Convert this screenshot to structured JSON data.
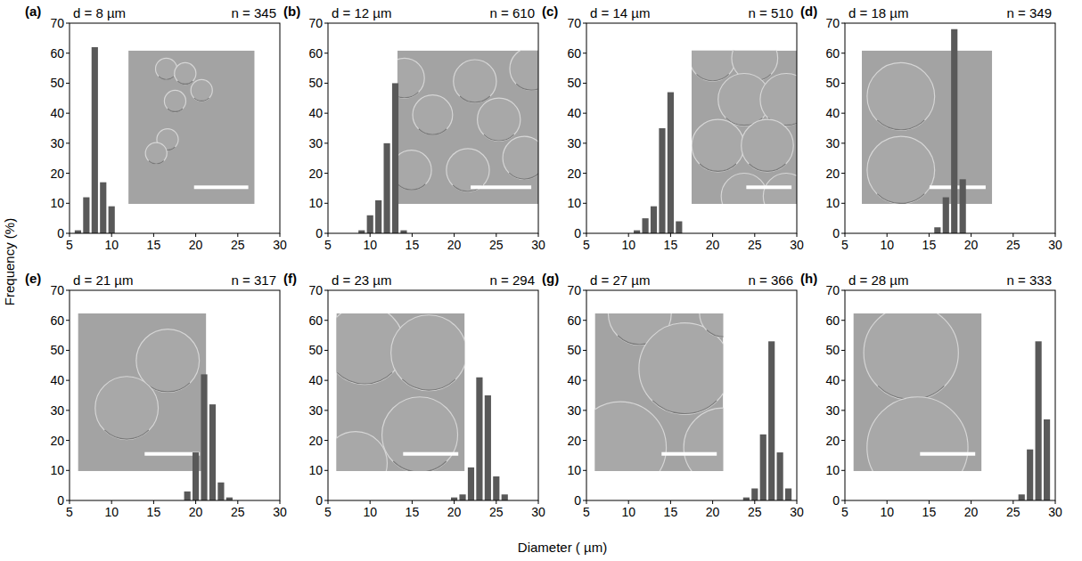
{
  "chart_data": [
    {
      "type": "histogram",
      "label": "(a)",
      "title": "d = 8 µm",
      "annotation": "n = 345",
      "bins": [
        5.5,
        6.5,
        7.5,
        8.5,
        9.5,
        10.5
      ],
      "values": [
        1,
        12,
        62,
        17,
        9
      ],
      "color": "#595959",
      "xlim": [
        5,
        30
      ],
      "xticks": [
        5,
        10,
        15,
        20,
        25,
        30
      ],
      "ylim": [
        0,
        70
      ],
      "yticks": [
        0,
        10,
        20,
        30,
        40,
        50,
        60,
        70
      ]
    },
    {
      "type": "histogram",
      "label": "(b)",
      "title": "d = 12 µm",
      "annotation": "n = 610",
      "bins": [
        8.5,
        9.5,
        10.5,
        11.5,
        12.5,
        13.5,
        14.5
      ],
      "values": [
        1,
        6,
        11,
        30,
        50,
        1
      ],
      "color": "#595959",
      "xlim": [
        5,
        30
      ],
      "xticks": [
        5,
        10,
        15,
        20,
        25,
        30
      ],
      "ylim": [
        0,
        70
      ],
      "yticks": [
        0,
        10,
        20,
        30,
        40,
        50,
        60,
        70
      ]
    },
    {
      "type": "histogram",
      "label": "(c)",
      "title": "d = 14 µm",
      "annotation": "n = 510",
      "bins": [
        10.5,
        11.5,
        12.5,
        13.5,
        14.5,
        15.5,
        16.5
      ],
      "values": [
        1,
        5,
        9,
        35,
        47,
        4
      ],
      "color": "#595959",
      "xlim": [
        5,
        30
      ],
      "xticks": [
        5,
        10,
        15,
        20,
        25,
        30
      ],
      "ylim": [
        0,
        70
      ],
      "yticks": [
        0,
        10,
        20,
        30,
        40,
        50,
        60,
        70
      ]
    },
    {
      "type": "histogram",
      "label": "(d)",
      "title": "d = 18 µm",
      "annotation": "n = 349",
      "bins": [
        15.5,
        16.5,
        17.5,
        18.5,
        19.5
      ],
      "values": [
        2,
        12,
        68,
        18
      ],
      "color": "#595959",
      "xlim": [
        5,
        30
      ],
      "xticks": [
        5,
        10,
        15,
        20,
        25,
        30
      ],
      "ylim": [
        0,
        70
      ],
      "yticks": [
        0,
        10,
        20,
        30,
        40,
        50,
        60,
        70
      ]
    },
    {
      "type": "histogram",
      "label": "(e)",
      "title": "d = 21 µm",
      "annotation": "n = 317",
      "bins": [
        18.5,
        19.5,
        20.5,
        21.5,
        22.5,
        23.5,
        24.5
      ],
      "values": [
        3,
        16,
        42,
        32,
        6,
        1
      ],
      "color": "#595959",
      "xlim": [
        5,
        30
      ],
      "xticks": [
        5,
        10,
        15,
        20,
        25,
        30
      ],
      "ylim": [
        0,
        70
      ],
      "yticks": [
        0,
        10,
        20,
        30,
        40,
        50,
        60,
        70
      ]
    },
    {
      "type": "histogram",
      "label": "(f)",
      "title": "d = 23 µm",
      "annotation": "n = 294",
      "bins": [
        19.5,
        20.5,
        21.5,
        22.5,
        23.5,
        24.5,
        25.5,
        26.5
      ],
      "values": [
        1,
        2,
        11,
        41,
        35,
        8,
        2
      ],
      "color": "#595959",
      "xlim": [
        5,
        30
      ],
      "xticks": [
        5,
        10,
        15,
        20,
        25,
        30
      ],
      "ylim": [
        0,
        70
      ],
      "yticks": [
        0,
        10,
        20,
        30,
        40,
        50,
        60,
        70
      ]
    },
    {
      "type": "histogram",
      "label": "(g)",
      "title": "d = 27 µm",
      "annotation": "n = 366",
      "bins": [
        23.5,
        24.5,
        25.5,
        26.5,
        27.5,
        28.5,
        29.5
      ],
      "values": [
        1,
        4,
        22,
        53,
        16,
        4
      ],
      "color": "#595959",
      "xlim": [
        5,
        30
      ],
      "xticks": [
        5,
        10,
        15,
        20,
        25,
        30
      ],
      "ylim": [
        0,
        70
      ],
      "yticks": [
        0,
        10,
        20,
        30,
        40,
        50,
        60,
        70
      ]
    },
    {
      "type": "histogram",
      "label": "(h)",
      "title": "d = 28 µm",
      "annotation": "n = 333",
      "bins": [
        25.5,
        26.5,
        27.5,
        28.5,
        29.5
      ],
      "values": [
        2,
        17,
        53,
        27
      ],
      "color": "#595959",
      "xlim": [
        5,
        30
      ],
      "xticks": [
        5,
        10,
        15,
        20,
        25,
        30
      ],
      "ylim": [
        0,
        70
      ],
      "yticks": [
        0,
        10,
        20,
        30,
        40,
        50,
        60,
        70
      ]
    }
  ],
  "x_label": "Diameter ( µm)",
  "y_label": "Frequency (%)"
}
